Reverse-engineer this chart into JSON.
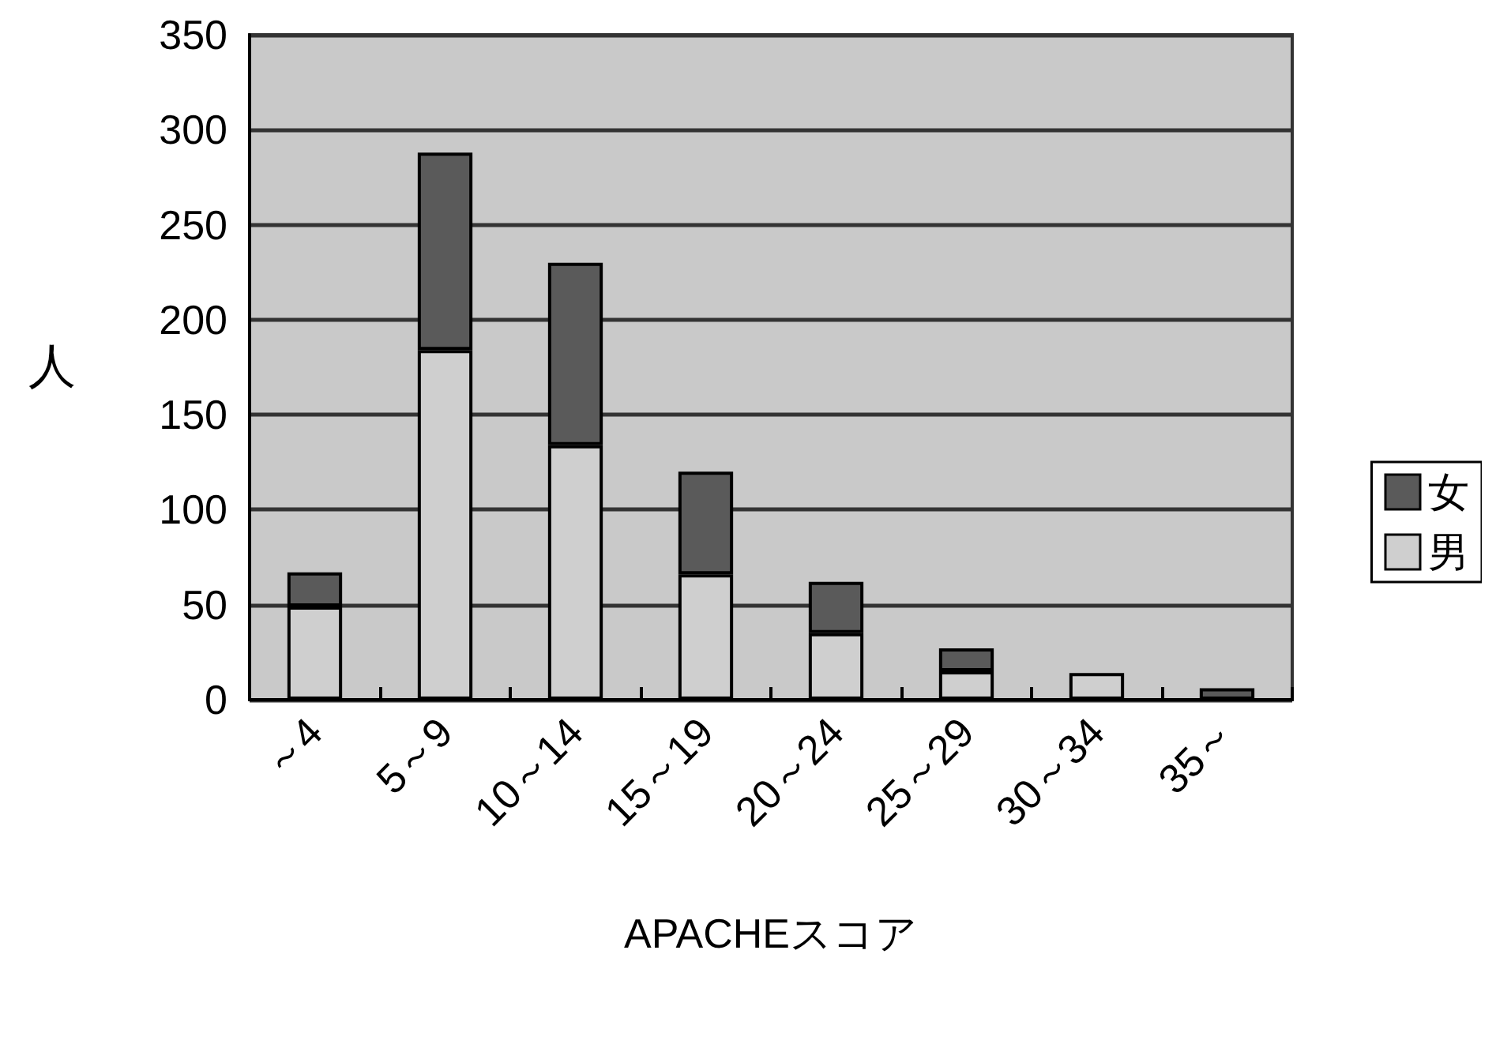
{
  "chart_data": {
    "type": "bar",
    "stacked": true,
    "categories": [
      "～4",
      "5～9",
      "10～14",
      "15～19",
      "20～24",
      "25～29",
      "30～34",
      "35～"
    ],
    "series": [
      {
        "name": "男",
        "color": "#cfcfcf",
        "values": [
          49,
          184,
          134,
          66,
          35,
          15,
          14,
          0
        ]
      },
      {
        "name": "女",
        "color": "#5a5a5a",
        "values": [
          18,
          104,
          96,
          54,
          27,
          12,
          0,
          6
        ]
      }
    ],
    "xlabel": "APACHEスコア",
    "ylabel": "人",
    "ylim": [
      0,
      350
    ],
    "yticks": [
      0,
      50,
      100,
      150,
      200,
      250,
      300,
      350
    ],
    "grid": "y",
    "legend": "right"
  }
}
